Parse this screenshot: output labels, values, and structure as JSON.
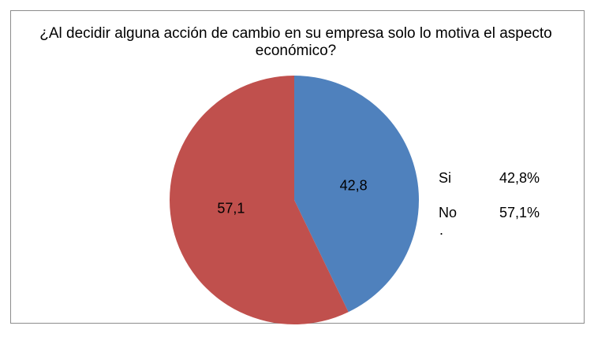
{
  "chart_data": {
    "type": "pie",
    "title_lines": [
      "¿Al decidir alguna  acción de cambio en  su empresa solo lo motiva el aspecto",
      "económico?"
    ],
    "categories": [
      "Si",
      "No"
    ],
    "values": [
      42.8,
      57.1
    ],
    "data_labels": [
      "42,8",
      "57,1"
    ],
    "colors": [
      "#4f81bd",
      "#c0504d"
    ],
    "legend": {
      "placement": "right",
      "entries": [
        {
          "name": "Si",
          "value_text": "42,8%"
        },
        {
          "name": "No",
          "value_text": "57,1%"
        }
      ],
      "trailing_mark": "."
    }
  }
}
